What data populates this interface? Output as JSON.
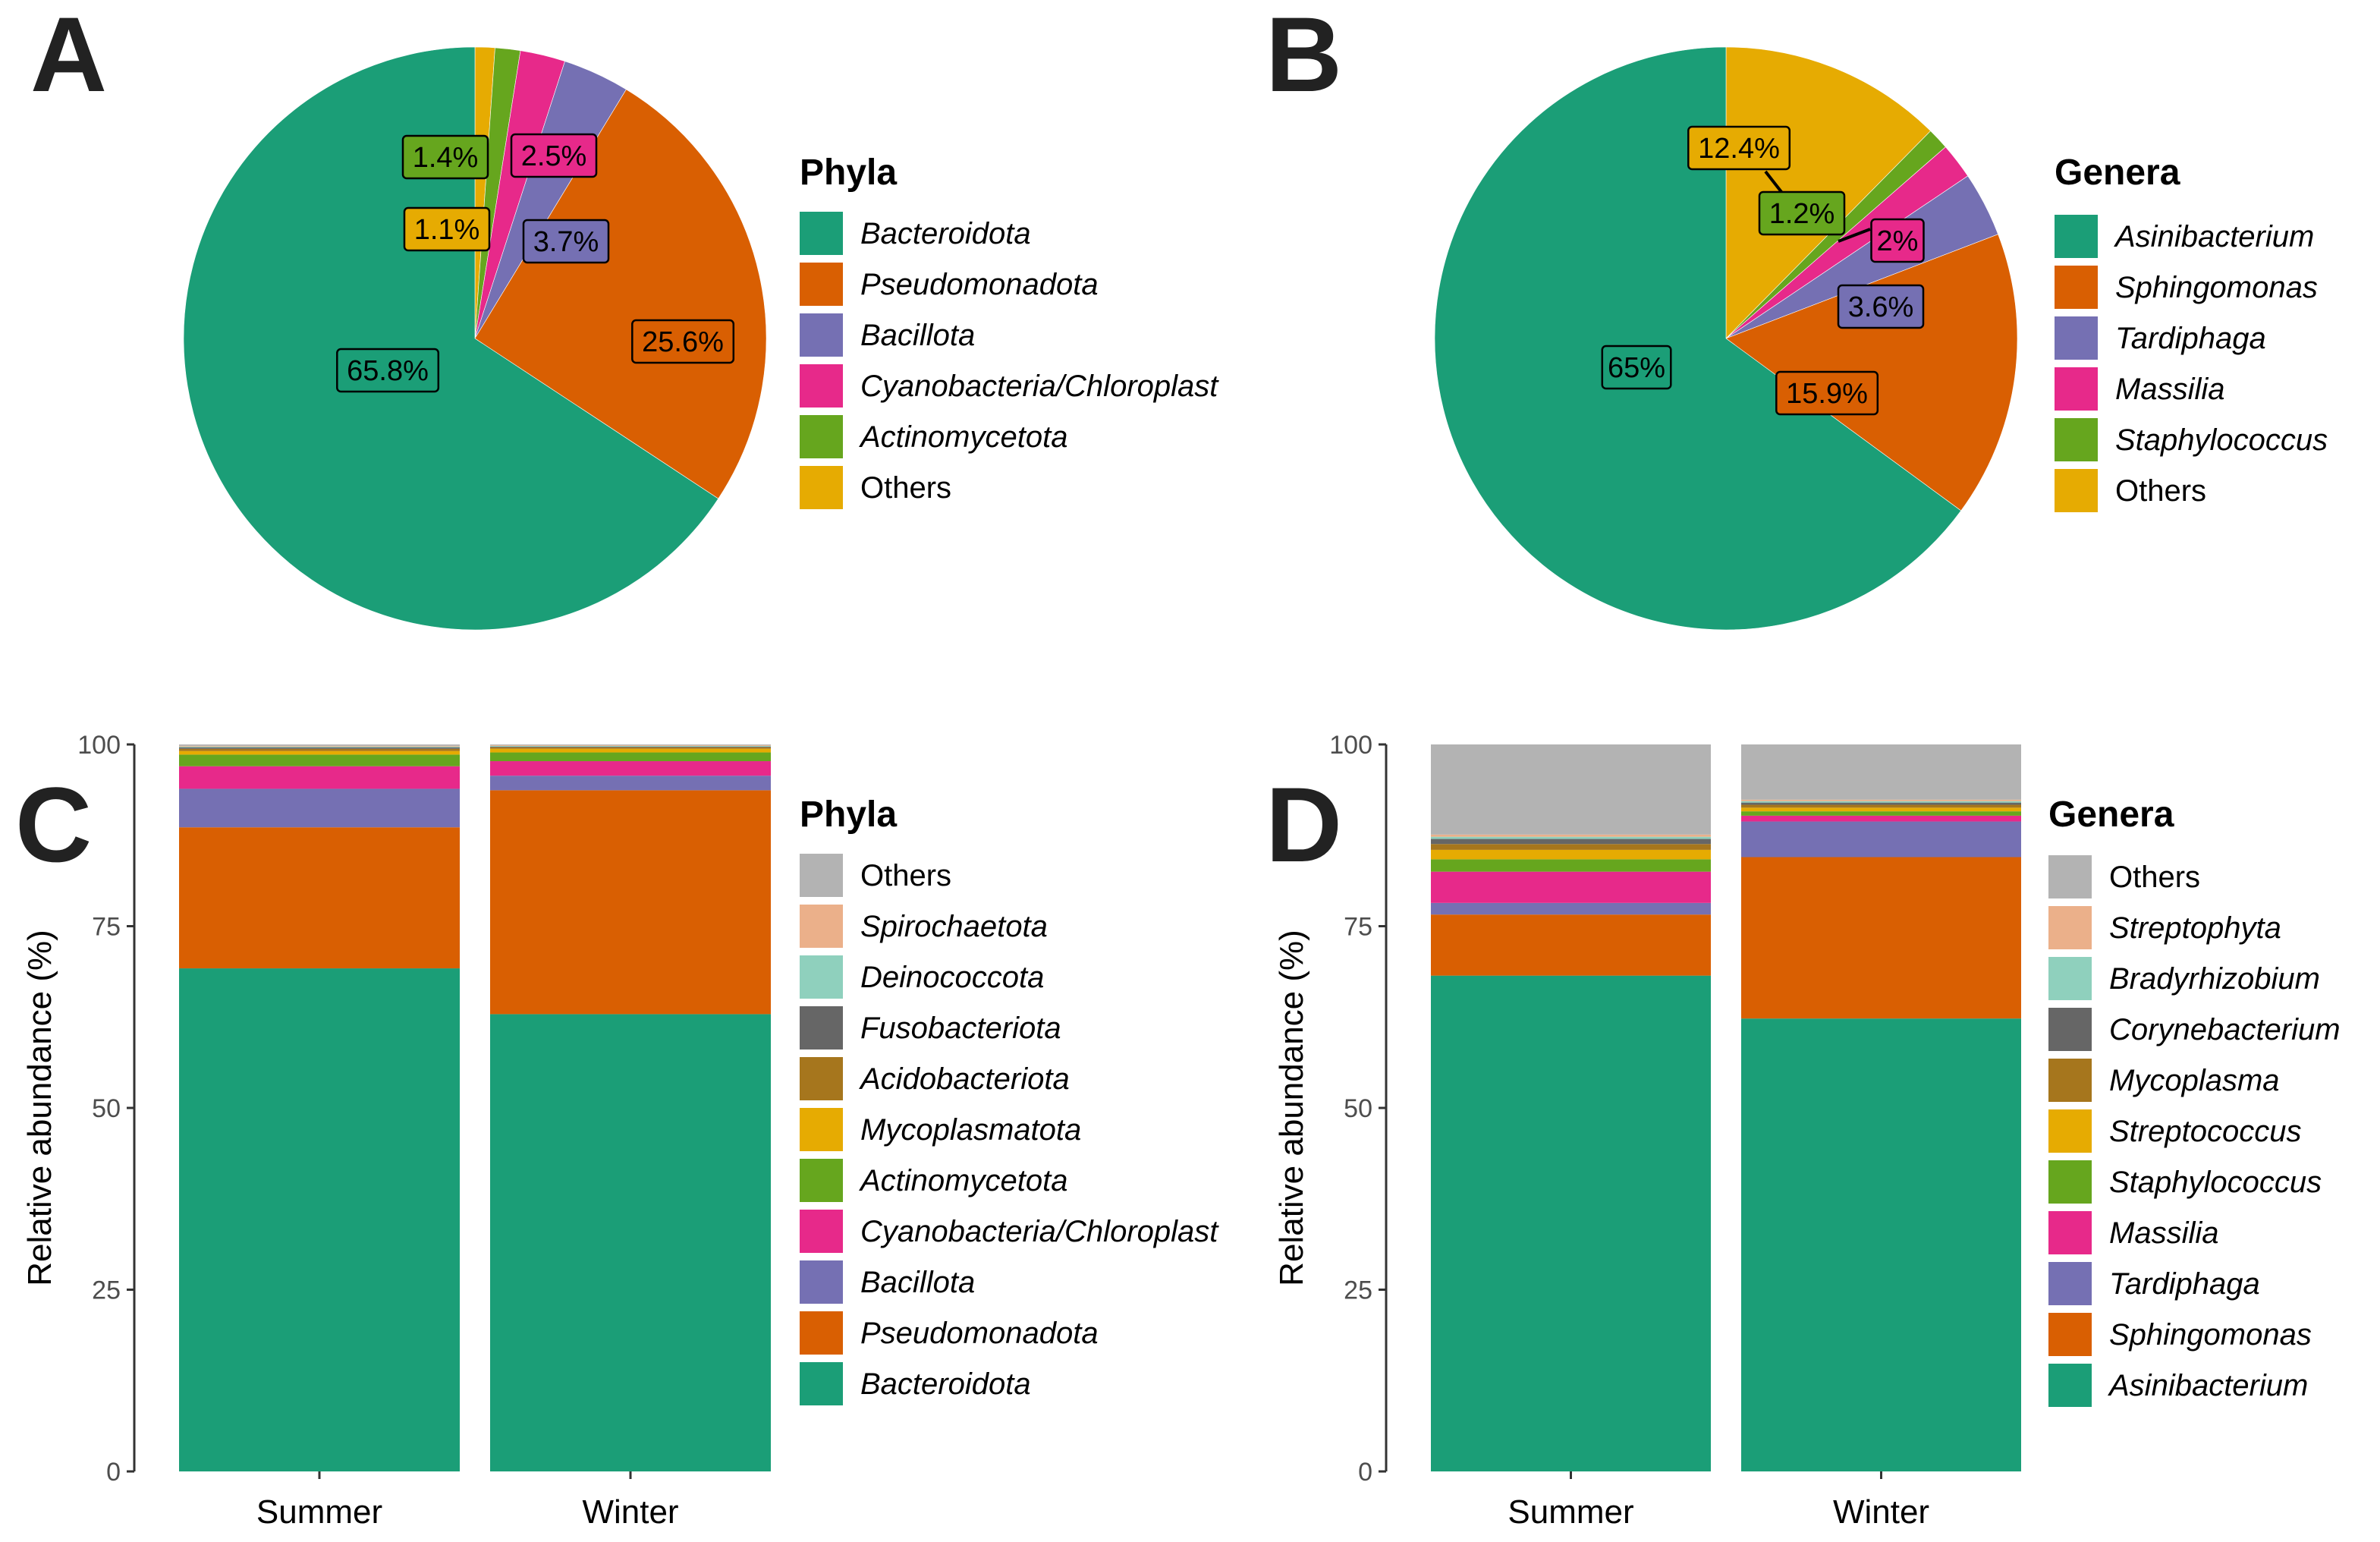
{
  "palette": {
    "green": "#1B9E77",
    "orange": "#D95F02",
    "purple": "#7570B3",
    "pink": "#E7298A",
    "lime": "#66A61E",
    "yellow": "#E6AB02",
    "brown": "#A6761D",
    "darkgray": "#666666",
    "mint": "#8FD0BD",
    "peach": "#EBB08A",
    "gray": "#B3B3B3"
  },
  "chart_data": [
    {
      "panel": "A",
      "type": "pie",
      "legend_title": "Phyla",
      "slices": [
        {
          "name": "Bacteroidota",
          "value": 65.8,
          "label": "65.8%",
          "color": "#1B9E77"
        },
        {
          "name": "Pseudomonadota",
          "value": 25.6,
          "label": "25.6%",
          "color": "#D95F02"
        },
        {
          "name": "Bacillota",
          "value": 3.7,
          "label": "3.7%",
          "color": "#7570B3"
        },
        {
          "name": "Cyanobacteria/Chloroplast",
          "value": 2.5,
          "label": "2.5%",
          "color": "#E7298A"
        },
        {
          "name": "Actinomycetota",
          "value": 1.4,
          "label": "1.4%",
          "color": "#66A61E"
        },
        {
          "name": "Others",
          "value": 1.1,
          "label": "1.1%",
          "color": "#E6AB02"
        }
      ]
    },
    {
      "panel": "B",
      "type": "pie",
      "legend_title": "Genera",
      "slices": [
        {
          "name": "Asinibacterium",
          "value": 65,
          "label": "65%",
          "color": "#1B9E77"
        },
        {
          "name": "Sphingomonas",
          "value": 15.9,
          "label": "15.9%",
          "color": "#D95F02"
        },
        {
          "name": "Tardiphaga",
          "value": 3.6,
          "label": "3.6%",
          "color": "#7570B3"
        },
        {
          "name": "Massilia",
          "value": 2,
          "label": "2%",
          "color": "#E7298A"
        },
        {
          "name": "Staphylococcus",
          "value": 1.2,
          "label": "1.2%",
          "color": "#66A61E"
        },
        {
          "name": "Others",
          "value": 12.4,
          "label": "12.4%",
          "color": "#E6AB02"
        }
      ]
    },
    {
      "panel": "C",
      "type": "bar",
      "stacked": true,
      "legend_title": "Phyla",
      "ylabel": "Relative abundance (%)",
      "ylim": [
        0,
        100
      ],
      "yticks": [
        "0",
        "25",
        "50",
        "75",
        "100"
      ],
      "categories": [
        "Summer",
        "Winter"
      ],
      "series": [
        {
          "name": "Bacteroidota",
          "color": "#1B9E77",
          "values": [
            69.2,
            62.9
          ]
        },
        {
          "name": "Pseudomonadota",
          "color": "#D95F02",
          "values": [
            19.4,
            30.8
          ]
        },
        {
          "name": "Bacillota",
          "color": "#7570B3",
          "values": [
            5.3,
            2.0
          ]
        },
        {
          "name": "Cyanobacteria/Chloroplast",
          "color": "#E7298A",
          "values": [
            3.1,
            2.0
          ]
        },
        {
          "name": "Actinomycetota",
          "color": "#66A61E",
          "values": [
            1.6,
            1.2
          ]
        },
        {
          "name": "Mycoplasmatota",
          "color": "#E6AB02",
          "values": [
            0.5,
            0.5
          ]
        },
        {
          "name": "Acidobacteriota",
          "color": "#A6761D",
          "values": [
            0.3,
            0.2
          ]
        },
        {
          "name": "Fusobacteriota",
          "color": "#666666",
          "values": [
            0.2,
            0.1
          ]
        },
        {
          "name": "Deinococcota",
          "color": "#8FD0BD",
          "values": [
            0.1,
            0.1
          ]
        },
        {
          "name": "Spirochaetota",
          "color": "#EBB08A",
          "values": [
            0.1,
            0.1
          ]
        },
        {
          "name": "Others",
          "color": "#B3B3B3",
          "values": [
            0.2,
            0.1
          ]
        }
      ]
    },
    {
      "panel": "D",
      "type": "bar",
      "stacked": true,
      "legend_title": "Genera",
      "ylabel": "Relative abundance (%)",
      "ylim": [
        0,
        100
      ],
      "yticks": [
        "0",
        "25",
        "50",
        "75",
        "100"
      ],
      "categories": [
        "Summer",
        "Winter"
      ],
      "series": [
        {
          "name": "Asinibacterium",
          "color": "#1B9E77",
          "values": [
            68.2,
            62.3
          ]
        },
        {
          "name": "Sphingomonas",
          "color": "#D95F02",
          "values": [
            8.4,
            22.2
          ]
        },
        {
          "name": "Tardiphaga",
          "color": "#7570B3",
          "values": [
            1.6,
            4.9
          ]
        },
        {
          "name": "Massilia",
          "color": "#E7298A",
          "values": [
            4.3,
            0.8
          ]
        },
        {
          "name": "Staphylococcus",
          "color": "#66A61E",
          "values": [
            1.7,
            0.6
          ]
        },
        {
          "name": "Streptococcus",
          "color": "#E6AB02",
          "values": [
            1.3,
            0.5
          ]
        },
        {
          "name": "Mycoplasma",
          "color": "#A6761D",
          "values": [
            0.8,
            0.4
          ]
        },
        {
          "name": "Corynebacterium",
          "color": "#666666",
          "values": [
            0.7,
            0.3
          ]
        },
        {
          "name": "Bradyrhizobium",
          "color": "#8FD0BD",
          "values": [
            0.3,
            0.2
          ]
        },
        {
          "name": "Streptophyta",
          "color": "#EBB08A",
          "values": [
            0.3,
            0.2
          ]
        },
        {
          "name": "Others",
          "color": "#B3B3B3",
          "values": [
            12.4,
            7.6
          ]
        }
      ]
    }
  ]
}
